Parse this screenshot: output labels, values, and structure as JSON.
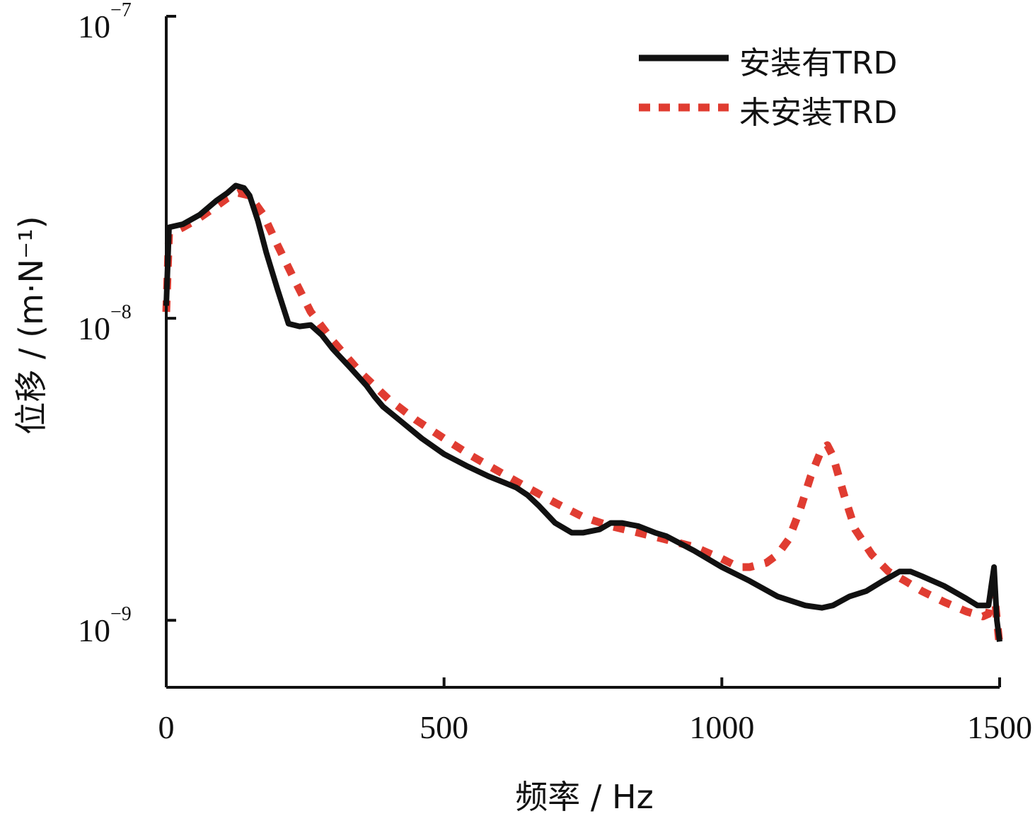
{
  "chart_data": {
    "type": "line",
    "xlabel": "频率 / Hz",
    "ylabel": "位移 / (m·N⁻¹)",
    "xlim": [
      0,
      1500
    ],
    "ylim": [
      6e-10,
      1e-07
    ],
    "yscale": "log",
    "x_ticks": [
      "0",
      "500",
      "1000",
      "1500"
    ],
    "x_tick_values": [
      0,
      500,
      1000,
      1500
    ],
    "y_ticks": [
      {
        "base": "10",
        "exp": "−9",
        "value": 1e-09
      },
      {
        "base": "10",
        "exp": "−8",
        "value": 1e-08
      },
      {
        "base": "10",
        "exp": "−7",
        "value": 1e-07
      }
    ],
    "legend_position": "top-right",
    "series": [
      {
        "name": "安装有TRD",
        "color": "#111111",
        "style": "solid",
        "x": [
          0,
          5,
          30,
          60,
          90,
          110,
          125,
          140,
          150,
          165,
          180,
          200,
          220,
          240,
          260,
          280,
          300,
          330,
          360,
          375,
          390,
          420,
          460,
          500,
          540,
          580,
          610,
          630,
          650,
          670,
          700,
          730,
          750,
          780,
          800,
          820,
          850,
          880,
          900,
          950,
          1000,
          1050,
          1100,
          1150,
          1180,
          1200,
          1230,
          1260,
          1290,
          1320,
          1340,
          1360,
          1400,
          1440,
          1460,
          1480,
          1485,
          1490,
          1495,
          1500
        ],
        "y": [
          1.1e-08,
          2e-08,
          2.05e-08,
          2.2e-08,
          2.45e-08,
          2.6e-08,
          2.75e-08,
          2.7e-08,
          2.55e-08,
          2.1e-08,
          1.65e-08,
          1.25e-08,
          9.6e-09,
          9.4e-09,
          9.5e-09,
          8.8e-09,
          7.9e-09,
          6.9e-09,
          6e-09,
          5.5e-09,
          5.1e-09,
          4.6e-09,
          4e-09,
          3.55e-09,
          3.25e-09,
          3e-09,
          2.85e-09,
          2.75e-09,
          2.6e-09,
          2.4e-09,
          2.1e-09,
          1.95e-09,
          1.95e-09,
          2e-09,
          2.1e-09,
          2.1e-09,
          2.05e-09,
          1.95e-09,
          1.9e-09,
          1.7e-09,
          1.5e-09,
          1.35e-09,
          1.2e-09,
          1.12e-09,
          1.1e-09,
          1.12e-09,
          1.2e-09,
          1.25e-09,
          1.35e-09,
          1.45e-09,
          1.45e-09,
          1.4e-09,
          1.3e-09,
          1.18e-09,
          1.12e-09,
          1.12e-09,
          1.3e-09,
          1.5e-09,
          1e-09,
          8.5e-10
        ]
      },
      {
        "name": "未安装TRD",
        "color": "#e03c31",
        "style": "dotted",
        "x": [
          0,
          5,
          30,
          60,
          90,
          110,
          130,
          150,
          175,
          200,
          230,
          260,
          300,
          350,
          400,
          450,
          500,
          550,
          600,
          650,
          700,
          750,
          800,
          850,
          900,
          950,
          1000,
          1030,
          1050,
          1080,
          1100,
          1120,
          1140,
          1160,
          1180,
          1190,
          1200,
          1220,
          1240,
          1270,
          1300,
          1330,
          1360,
          1400,
          1440,
          1470,
          1480,
          1490,
          1500
        ],
        "y": [
          1.05e-08,
          1.9e-08,
          2e-08,
          2.15e-08,
          2.35e-08,
          2.5e-08,
          2.6e-08,
          2.55e-08,
          2.2e-08,
          1.75e-08,
          1.35e-08,
          1.05e-08,
          8.4e-09,
          6.6e-09,
          5.4e-09,
          4.6e-09,
          4e-09,
          3.5e-09,
          3.1e-09,
          2.75e-09,
          2.45e-09,
          2.2e-09,
          2.05e-09,
          1.95e-09,
          1.85e-09,
          1.75e-09,
          1.6e-09,
          1.5e-09,
          1.5e-09,
          1.55e-09,
          1.65e-09,
          1.85e-09,
          2.3e-09,
          3e-09,
          3.7e-09,
          3.8e-09,
          3.5e-09,
          2.6e-09,
          2e-09,
          1.65e-09,
          1.45e-09,
          1.35e-09,
          1.25e-09,
          1.15e-09,
          1.07e-09,
          1.03e-09,
          1.05e-09,
          1.25e-09,
          8.2e-10
        ]
      }
    ]
  }
}
